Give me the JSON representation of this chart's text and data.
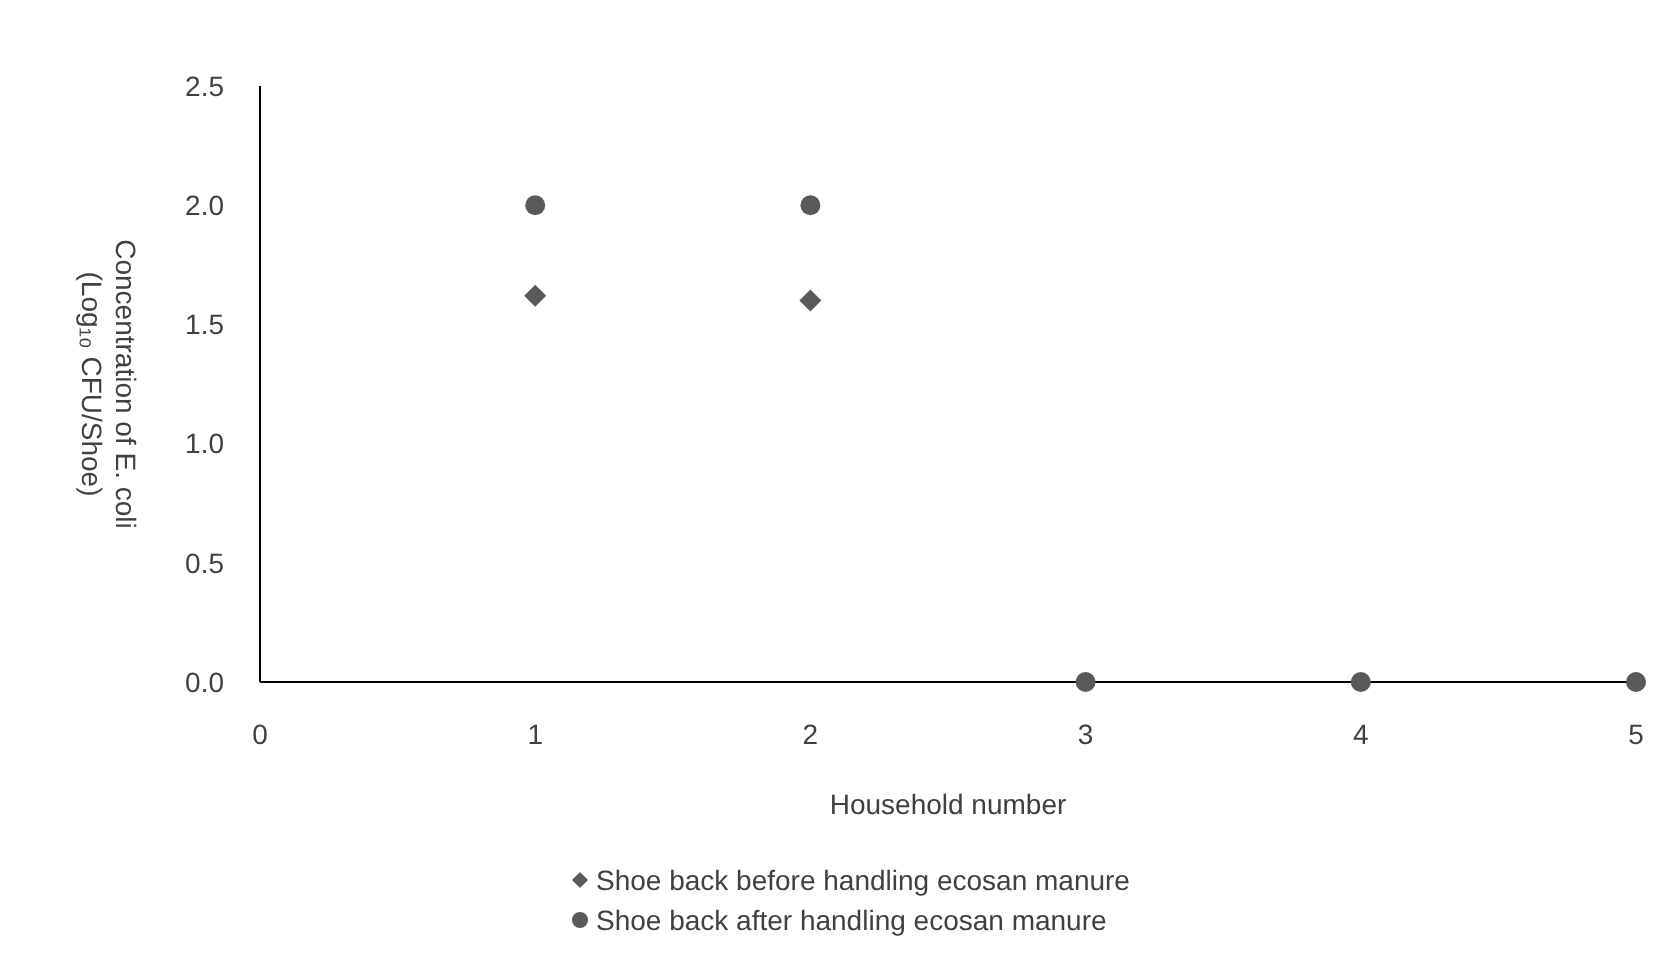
{
  "chart_data": {
    "type": "scatter",
    "xlabel": "Household number",
    "ylabel": "Concentration of E. coli (Log₁₀ CFU/Shoe)",
    "xlim": [
      0,
      5
    ],
    "xticks": [
      0,
      1,
      2,
      3,
      4,
      5
    ],
    "ylim": [
      0,
      2.5
    ],
    "yticks": [
      {
        "value": 0,
        "label": "0.0"
      },
      {
        "value": 0.5,
        "label": "0.5"
      },
      {
        "value": 1,
        "label": "1.0"
      },
      {
        "value": 1.5,
        "label": "1.5"
      },
      {
        "value": 2,
        "label": "2.0"
      },
      {
        "value": 2.5,
        "label": "2.5"
      }
    ],
    "grid": false,
    "legend": "bottom",
    "series": [
      {
        "name": "Shoe back before handling ecosan manure",
        "color": "#595959",
        "marker": "diamond",
        "x": [
          1,
          2
        ],
        "values": [
          1.62,
          1.6
        ]
      },
      {
        "name": "Shoe back after handling ecosan manure",
        "color": "#595959",
        "marker": "circle",
        "x": [
          1,
          2,
          3,
          4,
          5
        ],
        "values": [
          2,
          2,
          0,
          0,
          0
        ]
      }
    ]
  }
}
